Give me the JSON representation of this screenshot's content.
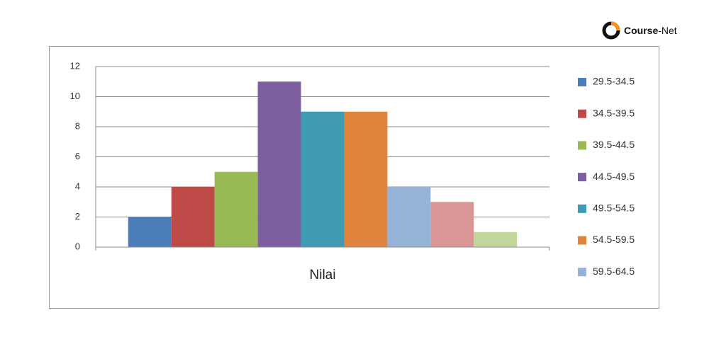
{
  "logo": {
    "brand": "Course",
    "suffix": "-Net"
  },
  "chart_data": {
    "type": "bar",
    "categories": [
      "Nilai"
    ],
    "series": [
      {
        "name": "29.5-34.5",
        "color": "#4a7ebb",
        "values": [
          2
        ]
      },
      {
        "name": "34.5-39.5",
        "color": "#be4b48",
        "values": [
          4
        ]
      },
      {
        "name": "39.5-44.5",
        "color": "#98b954",
        "values": [
          5
        ]
      },
      {
        "name": "44.5-49.5",
        "color": "#7d5fa0",
        "values": [
          11
        ]
      },
      {
        "name": "49.5-54.5",
        "color": "#3f9ab3",
        "values": [
          9
        ]
      },
      {
        "name": "54.5-59.5",
        "color": "#e0843d",
        "values": [
          9
        ]
      },
      {
        "name": "59.5-64.5",
        "color": "#95b3d7",
        "values": [
          4
        ]
      },
      {
        "color": "#d99694",
        "values": [
          3
        ]
      },
      {
        "color": "#c3d69b",
        "values": [
          1
        ]
      }
    ],
    "ylim": [
      0,
      12
    ],
    "yticks": [
      0,
      2,
      4,
      6,
      8,
      10,
      12
    ],
    "grid": true,
    "legend": "right"
  }
}
